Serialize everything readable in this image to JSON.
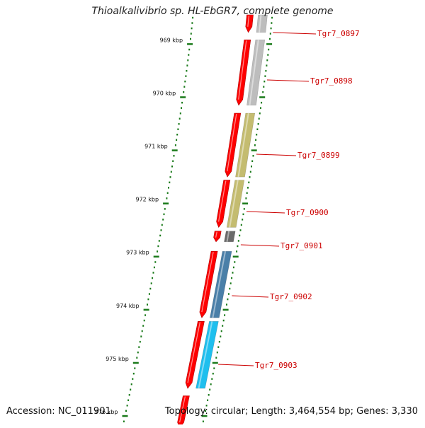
{
  "title": "Thioalkalivibrio sp. HL-EbGR7, complete genome",
  "accession_text": "Accession: NC_011901",
  "summary_text": "Topology: circular; Length: 3,464,554 bp; Genes: 3,330",
  "colors": {
    "backbone": "#7a7a7a",
    "forward_strand": "#ff0000",
    "tick_green": "#1a7a1a",
    "label_red": "#cc0000"
  },
  "ticks": [
    {
      "kbp": 969,
      "label": "969 kbp"
    },
    {
      "kbp": 970,
      "label": "970 kbp"
    },
    {
      "kbp": 971,
      "label": "971 kbp"
    },
    {
      "kbp": 972,
      "label": "972 kbp"
    },
    {
      "kbp": 973,
      "label": "973 kbp"
    },
    {
      "kbp": 974,
      "label": "974 kbp"
    },
    {
      "kbp": 975,
      "label": "975 kbp"
    },
    {
      "kbp": 976,
      "label": "976 kbp"
    }
  ],
  "genes": [
    {
      "id": "Tgr7_0897",
      "start_kbp": 968.45,
      "end_kbp": 968.78,
      "cog_color": "#bdbdbd"
    },
    {
      "id": "Tgr7_0898",
      "start_kbp": 968.92,
      "end_kbp": 970.15,
      "cog_color": "#bdbdbd"
    },
    {
      "id": "Tgr7_0899",
      "start_kbp": 970.3,
      "end_kbp": 971.5,
      "cog_color": "#c4bc70"
    },
    {
      "id": "Tgr7_0900",
      "start_kbp": 971.56,
      "end_kbp": 972.45,
      "cog_color": "#c4bc70"
    },
    {
      "id": "Tgr7_0901",
      "start_kbp": 972.52,
      "end_kbp": 972.72,
      "cog_color": "#6a6a6a"
    },
    {
      "id": "Tgr7_0902",
      "start_kbp": 972.9,
      "end_kbp": 974.15,
      "cog_color": "#4a7fa8"
    },
    {
      "id": "Tgr7_0903",
      "start_kbp": 974.22,
      "end_kbp": 975.48,
      "cog_color": "#1fbfee"
    },
    {
      "id": "",
      "start_kbp": 975.62,
      "end_kbp": 976.3,
      "cog_color": ""
    }
  ]
}
